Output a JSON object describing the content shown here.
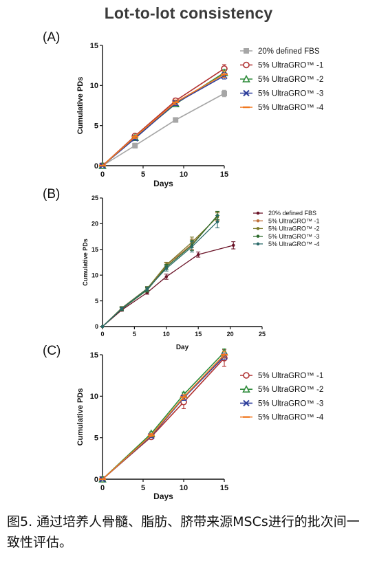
{
  "title": "Lot-to-lot consistency",
  "caption": "图5. 通过培养人骨髓、脂肪、脐带来源MSCs进行的批次间一致性评估。",
  "chart_data": [
    {
      "panel": "(A)",
      "type": "line",
      "xlabel": "Days",
      "ylabel": "Cumulative PDs",
      "xlim": [
        0,
        15
      ],
      "ylim": [
        0,
        15
      ],
      "xticks": [
        0,
        5,
        10,
        15
      ],
      "yticks": [
        0,
        5,
        10,
        15
      ],
      "legend_position": "right",
      "series": [
        {
          "name": "20% defined FBS",
          "color": "#a6a6a6",
          "marker": "square",
          "x": [
            0,
            4,
            9,
            15
          ],
          "y": [
            0,
            2.5,
            5.7,
            9.0
          ],
          "err": [
            0,
            0.3,
            0.3,
            0.4
          ]
        },
        {
          "name": "5% UltraGRO™ -1",
          "color": "#b03030",
          "marker": "circle",
          "x": [
            0,
            4,
            9,
            15
          ],
          "y": [
            0,
            3.7,
            8.1,
            12.1
          ],
          "err": [
            0,
            0.2,
            0.3,
            0.5
          ]
        },
        {
          "name": "5% UltraGRO™ -2",
          "color": "#2e8b3a",
          "marker": "triangle",
          "x": [
            0,
            4,
            9,
            15
          ],
          "y": [
            0,
            3.5,
            7.7,
            11.6
          ],
          "err": [
            0,
            0.2,
            0.3,
            0.4
          ]
        },
        {
          "name": "5% UltraGRO™ -3",
          "color": "#2e3f9c",
          "marker": "x",
          "x": [
            0,
            4,
            9,
            15
          ],
          "y": [
            0,
            3.4,
            7.8,
            11.2
          ],
          "err": [
            0,
            0.2,
            0.3,
            0.4
          ]
        },
        {
          "name": "5% UltraGRO™ -4",
          "color": "#f07820",
          "marker": "dash",
          "x": [
            0,
            4,
            9,
            15
          ],
          "y": [
            0,
            3.6,
            7.9,
            11.4
          ],
          "err": [
            0,
            0.2,
            0.3,
            0.4
          ]
        }
      ]
    },
    {
      "panel": "(B)",
      "type": "line",
      "xlabel": "Day",
      "ylabel": "Cumulative PDs",
      "xlim": [
        0,
        25
      ],
      "ylim": [
        0,
        25
      ],
      "xticks": [
        0,
        5,
        10,
        15,
        20,
        25
      ],
      "yticks": [
        0,
        5,
        10,
        15,
        20,
        25
      ],
      "legend_position": "right",
      "series": [
        {
          "name": "20% defined FBS",
          "color": "#6b1428",
          "marker": "dot",
          "x": [
            0,
            3,
            7,
            10,
            15,
            20.5
          ],
          "y": [
            0,
            3.2,
            6.6,
            9.7,
            14.0,
            15.8
          ],
          "err": [
            0,
            0.2,
            0.3,
            0.5,
            0.5,
            0.7
          ]
        },
        {
          "name": "5% UltraGRO™ -1",
          "color": "#c0703a",
          "marker": "dot",
          "x": [
            0,
            3,
            7,
            10,
            14,
            18
          ],
          "y": [
            0,
            3.5,
            7.2,
            11.9,
            16.0,
            21.5
          ],
          "err": [
            0,
            0.3,
            0.4,
            0.5,
            1.0,
            0.8
          ]
        },
        {
          "name": "5% UltraGRO™ -2",
          "color": "#7a7a2a",
          "marker": "dot",
          "x": [
            0,
            3,
            7,
            10,
            14,
            18
          ],
          "y": [
            0,
            3.6,
            7.4,
            12.0,
            16.4,
            21.3
          ],
          "err": [
            0,
            0.3,
            0.4,
            0.5,
            1.0,
            0.8
          ]
        },
        {
          "name": "5% UltraGRO™ -3",
          "color": "#2a6a2a",
          "marker": "dot",
          "x": [
            0,
            3,
            7,
            10,
            14,
            18
          ],
          "y": [
            0,
            3.4,
            7.1,
            11.6,
            15.8,
            21.6
          ],
          "err": [
            0,
            0.3,
            0.4,
            0.5,
            1.0,
            0.8
          ]
        },
        {
          "name": "5% UltraGRO™ -4",
          "color": "#2a6a6a",
          "marker": "dot",
          "x": [
            0,
            3,
            7,
            10,
            14,
            18
          ],
          "y": [
            0,
            3.5,
            7.3,
            11.3,
            15.5,
            20.4
          ],
          "err": [
            0,
            0.3,
            0.4,
            0.5,
            1.0,
            1.2
          ]
        }
      ]
    },
    {
      "panel": "(C)",
      "type": "line",
      "xlabel": "Days",
      "ylabel": "Cumulative PDs",
      "xlim": [
        0,
        15
      ],
      "ylim": [
        0,
        15
      ],
      "xticks": [
        0,
        5,
        10,
        15
      ],
      "yticks": [
        0,
        5,
        10,
        15
      ],
      "legend_position": "right",
      "series": [
        {
          "name": "5% UltraGRO™ -1",
          "color": "#b03030",
          "marker": "circle",
          "x": [
            0,
            6,
            10,
            15
          ],
          "y": [
            0,
            5.1,
            9.3,
            14.6
          ],
          "err": [
            0,
            0.2,
            0.8,
            1.0
          ]
        },
        {
          "name": "5% UltraGRO™ -2",
          "color": "#2e8b3a",
          "marker": "triangle",
          "x": [
            0,
            6,
            10,
            15
          ],
          "y": [
            0,
            5.5,
            10.2,
            15.3
          ],
          "err": [
            0,
            0.2,
            0.3,
            0.4
          ]
        },
        {
          "name": "5% UltraGRO™ -3",
          "color": "#2e3f9c",
          "marker": "x",
          "x": [
            0,
            6,
            10,
            15
          ],
          "y": [
            0,
            5.2,
            9.8,
            14.8
          ],
          "err": [
            0,
            0.2,
            0.3,
            0.4
          ]
        },
        {
          "name": "5% UltraGRO™ -4",
          "color": "#f07820",
          "marker": "dash",
          "x": [
            0,
            6,
            10,
            15
          ],
          "y": [
            0,
            5.3,
            9.9,
            15.0
          ],
          "err": [
            0,
            0.2,
            0.3,
            0.4
          ]
        }
      ]
    }
  ]
}
